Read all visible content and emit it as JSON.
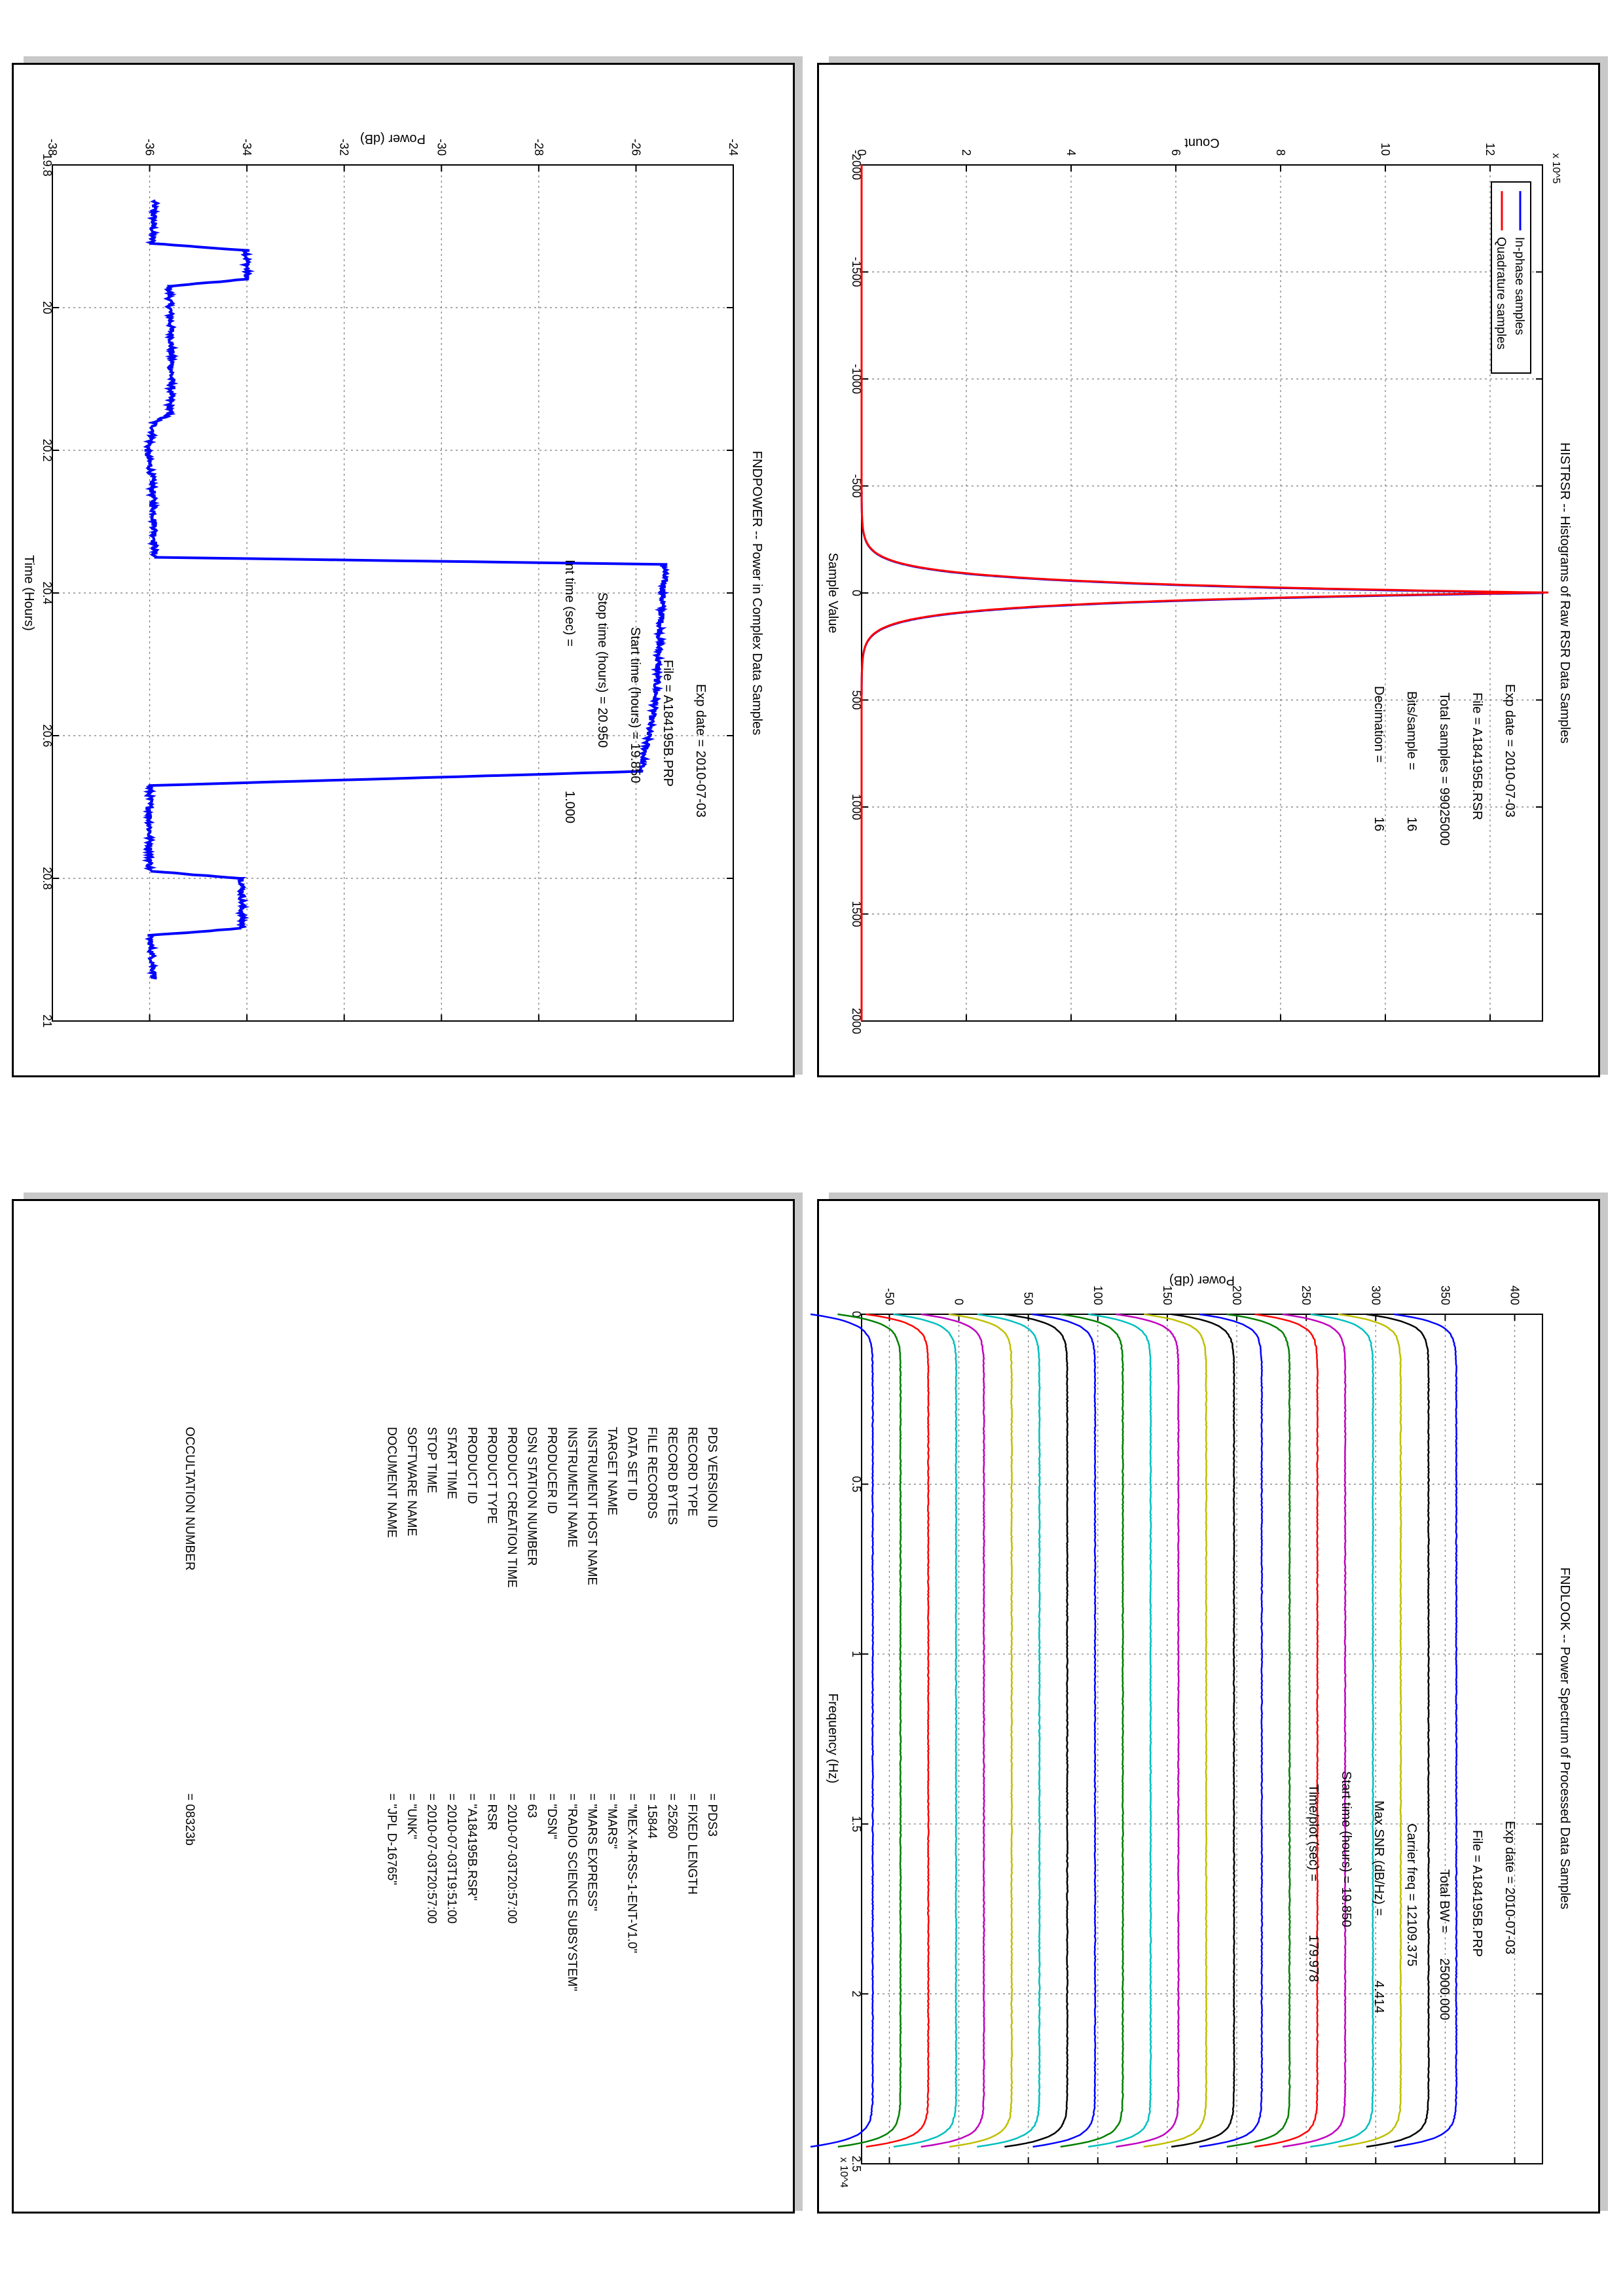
{
  "chart_data": [
    {
      "type": "line",
      "title": "FNDPOWER -- Power in Complex Data Samples",
      "xlabel": "Time (Hours)",
      "ylabel": "Power (dB)",
      "xlim": [
        19.8,
        21
      ],
      "ylim": [
        -38,
        -24
      ],
      "xticks": [
        "19.8",
        "20",
        "20.2",
        "20.4",
        "20.6",
        "20.8",
        "21"
      ],
      "yticks": [
        "-38",
        "-36",
        "-34",
        "-32",
        "-30",
        "-28",
        "-26",
        "-24"
      ],
      "grid": true,
      "series": [
        {
          "color": "#0000ff",
          "points": [
            [
              19.85,
              -35.9
            ],
            [
              19.91,
              -35.95
            ],
            [
              19.92,
              -34.0
            ],
            [
              19.96,
              -34.0
            ],
            [
              19.97,
              -35.6
            ],
            [
              20.05,
              -35.55
            ],
            [
              20.11,
              -35.55
            ],
            [
              20.15,
              -35.6
            ],
            [
              20.16,
              -35.9
            ],
            [
              20.18,
              -35.95
            ],
            [
              20.2,
              -36.05
            ],
            [
              20.24,
              -35.95
            ],
            [
              20.31,
              -35.9
            ],
            [
              20.35,
              -35.9
            ],
            [
              20.36,
              -25.4
            ],
            [
              20.45,
              -25.5
            ],
            [
              20.55,
              -25.6
            ],
            [
              20.65,
              -25.9
            ],
            [
              20.67,
              -36.0
            ],
            [
              20.79,
              -36.0
            ],
            [
              20.8,
              -34.1
            ],
            [
              20.87,
              -34.1
            ],
            [
              20.88,
              -36.0
            ],
            [
              20.94,
              -35.9
            ]
          ]
        }
      ],
      "annotations": [
        "Exp date = 2010-07-03",
        "File = A184195B.PRP",
        "Start time (hours) = 19.850",
        "Stop time (hours) = 20.950",
        "Int time (sec) =",
        "1.000"
      ]
    },
    {
      "type": "line",
      "title": "HISTRSR -- Histograms of Raw RSR Data Samples",
      "xlabel": "Sample Value",
      "ylabel": "Count",
      "xlim": [
        -2000,
        2000
      ],
      "ylim": [
        0,
        1300000
      ],
      "y_multiplier": "x 10^5",
      "xticks": [
        "-2000",
        "-1500",
        "-1000",
        "-500",
        "0",
        "500",
        "1000",
        "1500",
        "2000"
      ],
      "yticks": [
        "0",
        "2",
        "4",
        "6",
        "8",
        "10",
        "12"
      ],
      "grid": true,
      "legend": "top-left",
      "series": [
        {
          "name": "In-phase samples",
          "color": "#0000ff",
          "peak": 1305000,
          "width": 48
        },
        {
          "name": "Quadrature samples",
          "color": "#ff0000",
          "peak": 1305000,
          "width": 48
        }
      ],
      "annotations": [
        "Exp date = 2010-07-03",
        "File = A184195B.RSR",
        "Total samples =  99025000",
        "Bits/sample    =",
        "16",
        "Decimation    =",
        "16"
      ]
    },
    {
      "type": "line",
      "title": "FNDLOOK -- Power Spectrum of Processed Data Samples",
      "xlabel": "Frequency (Hz)",
      "ylabel": "Power (dB)",
      "xlim": [
        0,
        25000
      ],
      "ylim": [
        -70,
        420
      ],
      "x_multiplier": "x 10^4",
      "xticks": [
        "0",
        "0.5",
        "1",
        "1.5",
        "2",
        "2.5"
      ],
      "yticks": [
        "-50",
        "0",
        "50",
        "100",
        "150",
        "200",
        "250",
        "300",
        "350",
        "400"
      ],
      "grid": true,
      "series": [
        {
          "color": "#0000ff",
          "level": 358
        },
        {
          "color": "#000000",
          "level": 338
        },
        {
          "color": "#bfbf00",
          "level": 318
        },
        {
          "color": "#00bfbf",
          "level": 298
        },
        {
          "color": "#bf00bf",
          "level": 278
        },
        {
          "color": "#ff0000",
          "level": 258
        },
        {
          "color": "#007f00",
          "level": 238
        },
        {
          "color": "#0000ff",
          "level": 218
        },
        {
          "color": "#000000",
          "level": 198
        },
        {
          "color": "#bfbf00",
          "level": 178
        },
        {
          "color": "#bf00bf",
          "level": 158
        },
        {
          "color": "#00bfbf",
          "level": 138
        },
        {
          "color": "#007f00",
          "level": 118
        },
        {
          "color": "#0000ff",
          "level": 98
        },
        {
          "color": "#000000",
          "level": 78
        },
        {
          "color": "#00bfbf",
          "level": 58
        },
        {
          "color": "#bfbf00",
          "level": 38
        },
        {
          "color": "#bf00bf",
          "level": 18
        },
        {
          "color": "#00bfbf",
          "level": -2
        },
        {
          "color": "#ff0000",
          "level": -22
        },
        {
          "color": "#007f00",
          "level": -42
        },
        {
          "color": "#0000ff",
          "level": -62
        }
      ],
      "annotations": [
        "Exp date = 2010-07-03",
        "File = A184195B.PRP",
        "Total BW =",
        "25000.000",
        "Carrier freq  =  12109.375",
        "Max SNR (dB/Hz) =",
        "4.414",
        "Start time (hours) =  19.850",
        "Time/plot (sec) =",
        "179.978"
      ]
    }
  ],
  "label_table": {
    "rows": [
      {
        "key": "PDS VERSION ID",
        "value": "= PDS3"
      },
      {
        "key": "RECORD TYPE",
        "value": "= FIXED LENGTH"
      },
      {
        "key": "RECORD BYTES",
        "value": "= 25260"
      },
      {
        "key": "FILE RECORDS",
        "value": "= 15844"
      },
      {
        "key": "DATA SET ID",
        "value": "= \"MEX-M-RSS-1-ENT-V1.0\""
      },
      {
        "key": "TARGET NAME",
        "value": "= \"MARS\""
      },
      {
        "key": "INSTRUMENT HOST NAME",
        "value": "= \"MARS EXPRESS\""
      },
      {
        "key": "INSTRUMENT NAME",
        "value": "= \"RADIO SCIENCE SUBSYSTEM\""
      },
      {
        "key": "PRODUCER ID",
        "value": "= \"DSN\""
      },
      {
        "key": "DSN STATION NUMBER",
        "value": "= 63"
      },
      {
        "key": "PRODUCT CREATION TIME",
        "value": "= 2010-07-03T20:57:00"
      },
      {
        "key": "PRODUCT TYPE",
        "value": "= RSR"
      },
      {
        "key": "PRODUCT ID",
        "value": "= \"A184195B.RSR\""
      },
      {
        "key": "START TIME",
        "value": "= 2010-07-03T19:51:00"
      },
      {
        "key": "STOP TIME",
        "value": "= 2010-07-03T20:57:00"
      },
      {
        "key": "SOFTWARE NAME",
        "value": "= \"UNK\""
      },
      {
        "key": "DOCUMENT NAME",
        "value": "= \"JPL D-16765\""
      }
    ],
    "occultation": {
      "key": "OCCULTATION NUMBER",
      "value": "= 08323b"
    }
  }
}
